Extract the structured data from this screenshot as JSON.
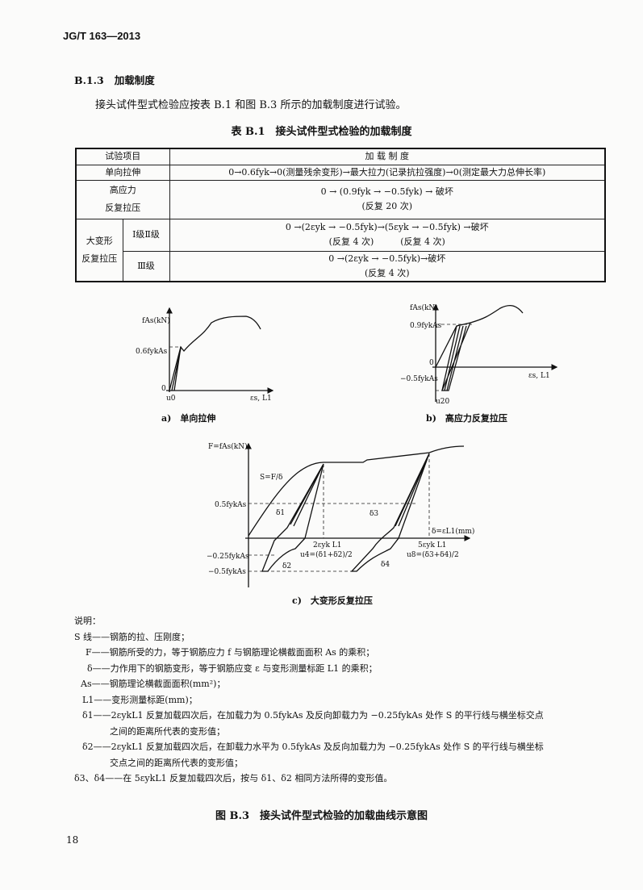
{
  "header": {
    "standard_no": "JG/T 163—2013"
  },
  "section": {
    "number": "B.1.3",
    "title": "加载制度"
  },
  "paragraph": "接头试件型式检验应按表 B.1 和图 B.3 所示的加载制度进行试验。",
  "table": {
    "caption": "表 B.1　接头试件型式检验的加载制度",
    "headers": [
      "试验项目",
      "加 载 制 度"
    ],
    "rows": [
      {
        "item": "单向拉伸",
        "schedule": "0→0.6fyk→0(测量残余变形)→最大拉力(记录抗拉强度)→0(测定最大力总伸长率)"
      },
      {
        "item_lines": [
          "高应力",
          "反复拉压"
        ],
        "schedule_lines": [
          "0 → (0.9fyk → −0.5fyk) → 破坏",
          "(反复 20 次)"
        ]
      },
      {
        "group_lines": [
          "大变形",
          "反复拉压"
        ],
        "sub": "Ⅰ级Ⅱ级",
        "schedule_lines": [
          "0 →(2εyk → −0.5fyk)→(5εyk → −0.5fyk) →破坏",
          "(反复 4 次)　　　(反复 4 次)"
        ]
      },
      {
        "sub": "Ⅲ级",
        "schedule_lines": [
          "0 →(2εyk → −0.5fyk)→破坏",
          "(反复 4 次)"
        ]
      }
    ]
  },
  "figures": {
    "a": {
      "caption": "a)　单向拉伸",
      "ylabel": "fAs(kN)",
      "ytick": "0.6fykAs",
      "origin": "0",
      "xtick": "u0",
      "xlabel": "εs, L1"
    },
    "b": {
      "caption": "b)　高应力反复拉压",
      "ylabel": "fAs(kN)",
      "ytick_top": "0.9fykAs",
      "ytick_bottom": "−0.5fykAs",
      "origin": "0",
      "xtick": "u20",
      "xlabel": "εs, L1"
    },
    "c": {
      "caption": "c)　大变形反复拉压",
      "ylabel": "F=fAs(kN)",
      "s_label": "S=F/δ",
      "yticks": [
        "0.5fykAs",
        "−0.25fykAs",
        "−0.5fykAs"
      ],
      "xlabel": "δ=εL1(mm)",
      "x1": "2εyk L1",
      "x2": "5εyk L1",
      "u4": "u4=(δ1+δ2)/2",
      "u8": "u8=(δ3+δ4)/2",
      "deltas": [
        "δ1",
        "δ2",
        "δ3",
        "δ4"
      ]
    }
  },
  "notes": {
    "title": "说明：",
    "items": [
      "S 线——钢筋的拉、压刚度；",
      "F——钢筋所受的力，等于钢筋应力 f 与钢筋理论横截面面积 As 的乘积；",
      "δ——力作用下的钢筋变形，等于钢筋应变 ε 与变形测量标距 L1 的乘积；",
      "As——钢筋理论横截面面积(mm²)；",
      "L1——变形测量标距(mm)；",
      "δ1——2εykL1 反复加载四次后，在加载力为 0.5fykAs 及反向卸载力为 −0.25fykAs 处作 S 的平行线与横坐标交点",
      "之间的距离所代表的变形值；",
      "δ2——2εykL1 反复加载四次后，在卸载力水平为 0.5fykAs 及反向加载力为 −0.25fykAs 处作 S 的平行线与横坐标",
      "交点之间的距离所代表的变形值；",
      "δ3、δ4——在 5εykL1 反复加载四次后，按与 δ1、δ2 相同方法所得的变形值。"
    ]
  },
  "figure_caption": "图 B.3　接头试件型式检验的加载曲线示意图",
  "page_number": "18"
}
